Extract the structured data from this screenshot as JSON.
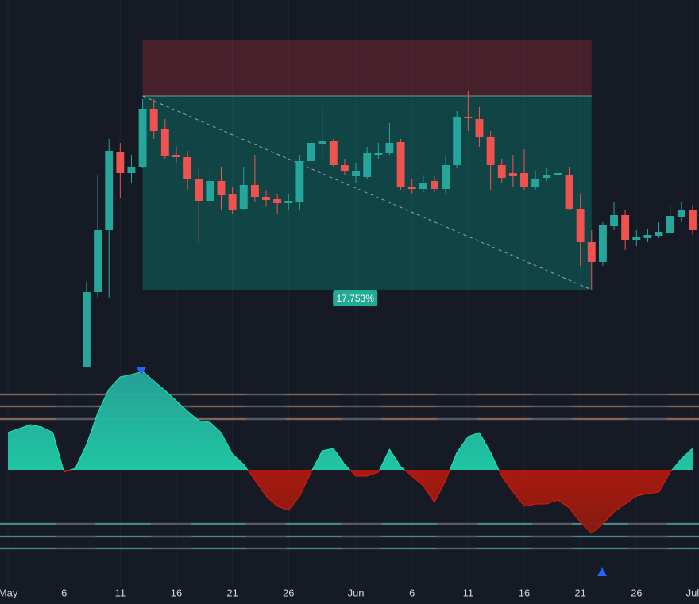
{
  "chart_data": [
    {
      "type": "candlestick",
      "x": [
        7,
        8,
        9,
        10,
        11,
        12,
        13,
        14,
        15,
        16,
        17,
        18,
        19,
        20,
        21,
        22,
        23,
        24,
        25,
        26,
        27,
        28,
        29,
        30,
        31,
        32,
        33,
        34,
        35,
        36,
        37,
        38,
        39,
        40,
        41,
        42,
        43,
        44,
        45,
        46,
        47,
        48,
        49,
        50,
        51,
        52,
        53,
        54,
        55,
        56,
        57,
        58,
        59,
        60,
        61
      ],
      "open": [
        38,
        132,
        210,
        308,
        282,
        290,
        363,
        338,
        305,
        302,
        275,
        247,
        272,
        256,
        237,
        267,
        252,
        249,
        244,
        245,
        297,
        319,
        322,
        292,
        278,
        277,
        305,
        307,
        321,
        265,
        262,
        272,
        262,
        292,
        353,
        350,
        327,
        292,
        282,
        282,
        264,
        276,
        280,
        280,
        237,
        195,
        170,
        215,
        229,
        197,
        200,
        203,
        206,
        227,
        235
      ],
      "high": [
        145,
        280,
        325,
        320,
        305,
        375,
        375,
        350,
        315,
        310,
        290,
        285,
        290,
        265,
        290,
        305,
        260,
        255,
        255,
        305,
        335,
        365,
        325,
        300,
        295,
        315,
        320,
        345,
        325,
        275,
        280,
        278,
        305,
        360,
        385,
        365,
        335,
        300,
        305,
        312,
        285,
        288,
        288,
        290,
        255,
        210,
        220,
        245,
        235,
        210,
        212,
        220,
        240,
        245,
        242
      ],
      "low": [
        38,
        125,
        125,
        250,
        270,
        288,
        325,
        300,
        295,
        260,
        195,
        240,
        235,
        230,
        235,
        245,
        240,
        230,
        235,
        235,
        295,
        300,
        290,
        280,
        270,
        275,
        300,
        305,
        260,
        255,
        258,
        258,
        255,
        288,
        335,
        315,
        260,
        270,
        265,
        260,
        260,
        272,
        275,
        235,
        165,
        135,
        165,
        210,
        185,
        190,
        195,
        200,
        205,
        220,
        205
      ],
      "close": [
        132,
        210,
        310,
        282,
        290,
        363,
        335,
        303,
        302,
        275,
        247,
        272,
        254,
        235,
        267,
        252,
        248,
        244,
        247,
        297,
        320,
        322,
        292,
        284,
        285,
        307,
        307,
        320,
        264,
        262,
        270,
        262,
        292,
        353,
        351,
        327,
        292,
        276,
        278,
        264,
        275,
        280,
        282,
        237,
        195,
        170,
        216,
        229,
        197,
        201,
        204,
        208,
        228,
        235,
        210
      ],
      "up_color": "#26a69a",
      "down_color": "#ef5350",
      "xlim": [
        -0.71,
        61.57
      ],
      "ylim": [
        30,
        500
      ],
      "position": {
        "x_start": 12,
        "x_end": 52,
        "stop": 450,
        "entry": 379,
        "target": 135
      },
      "annotation": "17.753%"
    },
    {
      "type": "area",
      "x": [
        0,
        1,
        2,
        3,
        4,
        5,
        6,
        7,
        8,
        9,
        10,
        11,
        12,
        13,
        14,
        15,
        16,
        17,
        18,
        19,
        20,
        21,
        22,
        23,
        24,
        25,
        26,
        27,
        28,
        29,
        30,
        31,
        32,
        33,
        34,
        35,
        36,
        37,
        38,
        39,
        40,
        41,
        42,
        43,
        44,
        45,
        46,
        47,
        48,
        49,
        50,
        51,
        52,
        53,
        54,
        55,
        56,
        57,
        58,
        59,
        60,
        61
      ],
      "values": [
        47,
        52,
        57,
        54,
        47,
        -3,
        2,
        32,
        72,
        102,
        117,
        120,
        124,
        112,
        100,
        87,
        74,
        62,
        60,
        47,
        20,
        7,
        -13,
        -33,
        -46,
        -51,
        -33,
        -3,
        24,
        27,
        7,
        -8,
        -8,
        -3,
        26,
        4,
        -8,
        -20,
        -41,
        -13,
        22,
        42,
        47,
        22,
        -8,
        -28,
        -46,
        -43,
        -43,
        -38,
        -48,
        -66,
        -80,
        -68,
        -53,
        -43,
        -33,
        -30,
        -28,
        -3,
        14,
        27
      ],
      "up_color": "#1de9b6",
      "down_color": "#e8180c",
      "levels": [
        95,
        80,
        64,
        -68,
        -84,
        -99
      ],
      "xlim": [
        -0.71,
        61.57
      ],
      "ylim": [
        -148,
        132
      ],
      "xticks": [
        {
          "value": 0,
          "label": "May"
        },
        {
          "value": 5,
          "label": "6"
        },
        {
          "value": 10,
          "label": "11"
        },
        {
          "value": 15,
          "label": "16"
        },
        {
          "value": 20,
          "label": "21"
        },
        {
          "value": 25,
          "label": "26"
        },
        {
          "value": 31,
          "label": "Jun"
        },
        {
          "value": 36,
          "label": "6"
        },
        {
          "value": 41,
          "label": "11"
        },
        {
          "value": 46,
          "label": "16"
        },
        {
          "value": 51,
          "label": "21"
        },
        {
          "value": 56,
          "label": "26"
        },
        {
          "value": 61,
          "label": "Jul"
        }
      ],
      "grid": true
    }
  ]
}
